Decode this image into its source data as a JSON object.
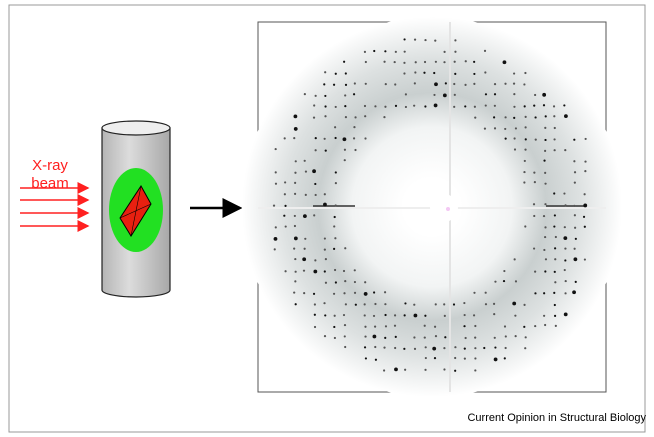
{
  "diagram": {
    "beam_label_lines": [
      "X-ray",
      "beam"
    ],
    "credit": "Current Opinion in Structural Biology"
  }
}
